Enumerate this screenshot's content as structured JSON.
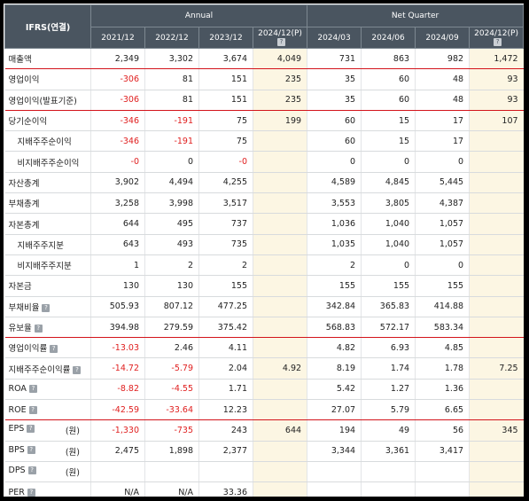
{
  "header": {
    "corner": "IFRS(연결)",
    "annual": "Annual",
    "quarter": "Net Quarter",
    "cols": [
      "2021/12",
      "2022/12",
      "2023/12",
      "2024/12(P)",
      "2024/03",
      "2024/06",
      "2024/09",
      "2024/12(P)"
    ],
    "proj_cols": [
      3,
      7
    ]
  },
  "rows": [
    {
      "label": "매출액",
      "values": [
        "2,349",
        "3,302",
        "3,674",
        "4,049",
        "731",
        "863",
        "982",
        "1,472"
      ]
    },
    {
      "label": "영업이익",
      "values": [
        "-306",
        "81",
        "151",
        "235",
        "35",
        "60",
        "48",
        "93"
      ]
    },
    {
      "label": "영업이익(발표기준)",
      "values": [
        "-306",
        "81",
        "151",
        "235",
        "35",
        "60",
        "48",
        "93"
      ]
    },
    {
      "label": "당기순이익",
      "values": [
        "-346",
        "-191",
        "75",
        "199",
        "60",
        "15",
        "17",
        "107"
      ]
    },
    {
      "label": "지배주주순이익",
      "values": [
        "-346",
        "-191",
        "75",
        "",
        "60",
        "15",
        "17",
        ""
      ]
    },
    {
      "label": "비지배주주순이익",
      "values": [
        "-0",
        "0",
        "-0",
        "",
        "0",
        "0",
        "0",
        ""
      ]
    },
    {
      "label": "자산총계",
      "values": [
        "3,902",
        "4,494",
        "4,255",
        "",
        "4,589",
        "4,845",
        "5,445",
        ""
      ]
    },
    {
      "label": "부채총계",
      "values": [
        "3,258",
        "3,998",
        "3,517",
        "",
        "3,553",
        "3,805",
        "4,387",
        ""
      ]
    },
    {
      "label": "자본총계",
      "values": [
        "644",
        "495",
        "737",
        "",
        "1,036",
        "1,040",
        "1,057",
        ""
      ]
    },
    {
      "label": "지배주주지분",
      "values": [
        "643",
        "493",
        "735",
        "",
        "1,035",
        "1,040",
        "1,057",
        ""
      ]
    },
    {
      "label": "비지배주주지분",
      "values": [
        "1",
        "2",
        "2",
        "",
        "2",
        "0",
        "0",
        ""
      ]
    },
    {
      "label": "자본금",
      "values": [
        "130",
        "130",
        "155",
        "",
        "155",
        "155",
        "155",
        ""
      ]
    },
    {
      "label": "부채비율",
      "values": [
        "505.93",
        "807.12",
        "477.25",
        "",
        "342.84",
        "365.83",
        "414.88",
        ""
      ]
    },
    {
      "label": "유보율",
      "values": [
        "394.98",
        "279.59",
        "375.42",
        "",
        "568.83",
        "572.17",
        "583.34",
        ""
      ]
    },
    {
      "label": "영업이익률",
      "values": [
        "-13.03",
        "2.46",
        "4.11",
        "",
        "4.82",
        "6.93",
        "4.85",
        ""
      ]
    },
    {
      "label": "지배주주순이익률",
      "values": [
        "-14.72",
        "-5.79",
        "2.04",
        "4.92",
        "8.19",
        "1.74",
        "1.78",
        "7.25"
      ]
    },
    {
      "label": "ROA",
      "values": [
        "-8.82",
        "-4.55",
        "1.71",
        "",
        "5.42",
        "1.27",
        "1.36",
        ""
      ]
    },
    {
      "label": "ROE",
      "values": [
        "-42.59",
        "-33.64",
        "12.23",
        "",
        "27.07",
        "5.79",
        "6.65",
        ""
      ]
    },
    {
      "label": "EPS",
      "unit": "(원)",
      "values": [
        "-1,330",
        "-735",
        "243",
        "644",
        "194",
        "49",
        "56",
        "345"
      ]
    },
    {
      "label": "BPS",
      "unit": "(원)",
      "values": [
        "2,475",
        "1,898",
        "2,377",
        "",
        "3,344",
        "3,361",
        "3,417",
        ""
      ]
    },
    {
      "label": "DPS",
      "unit": "(원)",
      "values": [
        "",
        "",
        "",
        "",
        "",
        "",
        "",
        ""
      ]
    },
    {
      "label": "PER",
      "values": [
        "N/A",
        "N/A",
        "33.36",
        "",
        "",
        "",
        "",
        ""
      ]
    }
  ],
  "info_icon_text": "?",
  "colors": {
    "header_bg": "#4a5560",
    "projection_bg": "#fcf6e3",
    "negative": "#e02020",
    "highlight_line": "#d3141b"
  }
}
